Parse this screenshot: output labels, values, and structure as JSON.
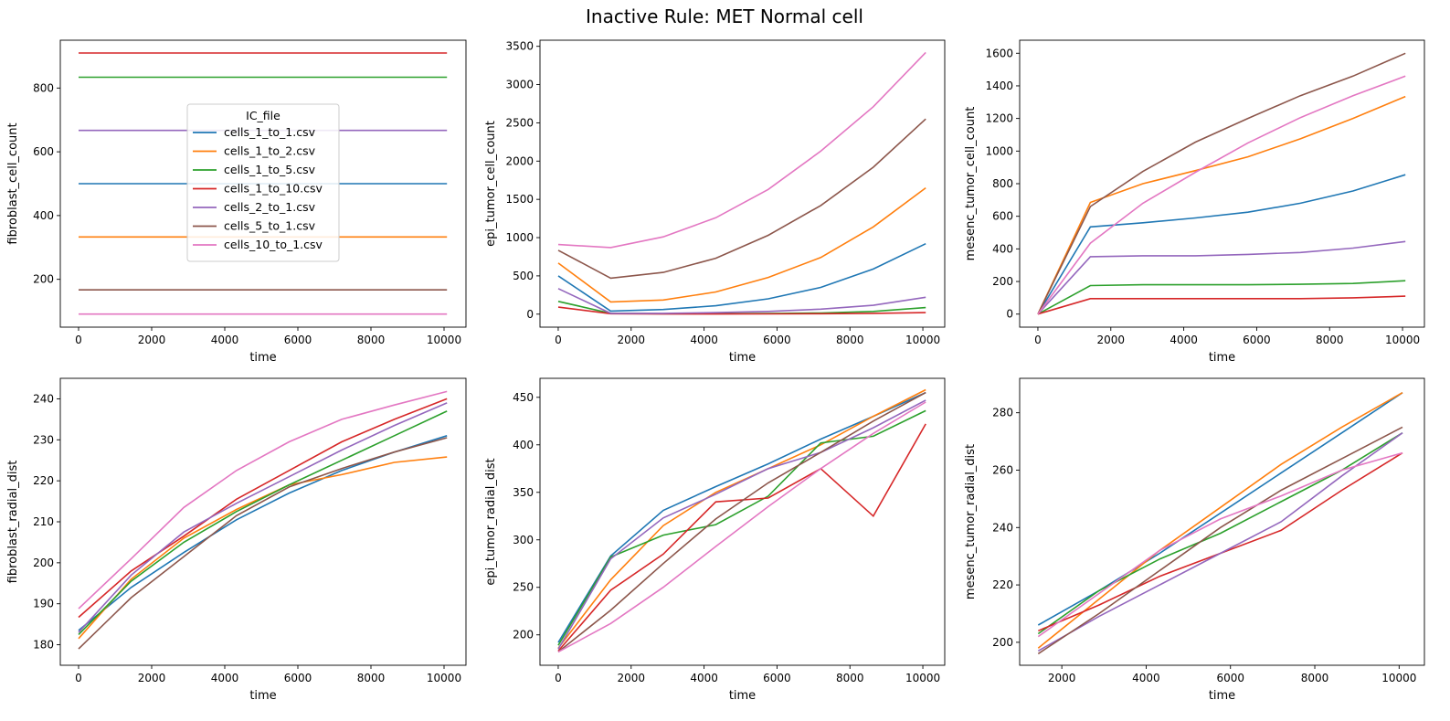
{
  "figure": {
    "title": "Inactive Rule: MET Normal cell"
  },
  "legend": {
    "title": "IC_file",
    "placement": "upper-center of first panel",
    "entries": [
      "cells_1_to_1.csv",
      "cells_1_to_2.csv",
      "cells_1_to_5.csv",
      "cells_1_to_10.csv",
      "cells_2_to_1.csv",
      "cells_5_to_1.csv",
      "cells_10_to_1.csv"
    ]
  },
  "colors": [
    "#1f77b4",
    "#ff7f0e",
    "#2ca02c",
    "#d62728",
    "#9467bd",
    "#8c564b",
    "#e377c2"
  ],
  "chart_data": [
    {
      "type": "line",
      "xlabel": "time",
      "ylabel": "fibroblast_cell_count",
      "xlim": [
        -500,
        10600
      ],
      "ylim": [
        50,
        950
      ],
      "xticks": [
        0,
        2000,
        4000,
        6000,
        8000,
        10000
      ],
      "yticks": [
        200,
        400,
        600,
        800
      ],
      "x": [
        0,
        1440,
        2880,
        4320,
        5760,
        7200,
        8640,
        10080
      ],
      "series": [
        {
          "name": "cells_1_to_1.csv",
          "values": [
            500,
            500,
            500,
            500,
            500,
            500,
            500,
            500
          ]
        },
        {
          "name": "cells_1_to_2.csv",
          "values": [
            333,
            333,
            333,
            333,
            333,
            333,
            333,
            333
          ]
        },
        {
          "name": "cells_1_to_5.csv",
          "values": [
            834,
            834,
            834,
            834,
            834,
            834,
            834,
            834
          ]
        },
        {
          "name": "cells_1_to_10.csv",
          "values": [
            910,
            910,
            910,
            910,
            910,
            910,
            910,
            910
          ]
        },
        {
          "name": "cells_2_to_1.csv",
          "values": [
            667,
            667,
            667,
            667,
            667,
            667,
            667,
            667
          ]
        },
        {
          "name": "cells_5_to_1.csv",
          "values": [
            167,
            167,
            167,
            167,
            167,
            167,
            167,
            167
          ]
        },
        {
          "name": "cells_10_to_1.csv",
          "values": [
            91,
            91,
            91,
            91,
            91,
            91,
            91,
            91
          ]
        }
      ]
    },
    {
      "type": "line",
      "xlabel": "time",
      "ylabel": "epi_tumor_cell_count",
      "xlim": [
        -500,
        10600
      ],
      "ylim": [
        -170,
        3580
      ],
      "xticks": [
        0,
        2000,
        4000,
        6000,
        8000,
        10000
      ],
      "yticks": [
        0,
        500,
        1000,
        1500,
        2000,
        2500,
        3000,
        3500
      ],
      "x": [
        0,
        1440,
        2880,
        4320,
        5760,
        7200,
        8640,
        10080
      ],
      "series": [
        {
          "name": "cells_1_to_1.csv",
          "values": [
            500,
            40,
            60,
            110,
            200,
            350,
            590,
            920
          ]
        },
        {
          "name": "cells_1_to_2.csv",
          "values": [
            667,
            160,
            185,
            290,
            480,
            740,
            1140,
            1650
          ]
        },
        {
          "name": "cells_1_to_5.csv",
          "values": [
            167,
            10,
            5,
            5,
            8,
            15,
            35,
            85
          ]
        },
        {
          "name": "cells_1_to_10.csv",
          "values": [
            91,
            5,
            2,
            2,
            3,
            5,
            10,
            20
          ]
        },
        {
          "name": "cells_2_to_1.csv",
          "values": [
            334,
            10,
            10,
            20,
            35,
            65,
            115,
            220
          ]
        },
        {
          "name": "cells_5_to_1.csv",
          "values": [
            834,
            470,
            545,
            730,
            1030,
            1420,
            1920,
            2550
          ]
        },
        {
          "name": "cells_10_to_1.csv",
          "values": [
            910,
            870,
            1010,
            1260,
            1630,
            2130,
            2710,
            3420
          ]
        }
      ]
    },
    {
      "type": "line",
      "xlabel": "time",
      "ylabel": "mesenc_tumor_cell_count",
      "xlim": [
        -500,
        10600
      ],
      "ylim": [
        -80,
        1680
      ],
      "xticks": [
        0,
        2000,
        4000,
        6000,
        8000,
        10000
      ],
      "yticks": [
        0,
        200,
        400,
        600,
        800,
        1000,
        1200,
        1400,
        1600
      ],
      "x": [
        0,
        1440,
        2880,
        4320,
        5760,
        7200,
        8640,
        10080
      ],
      "series": [
        {
          "name": "cells_1_to_1.csv",
          "values": [
            0,
            535,
            560,
            590,
            625,
            680,
            755,
            855
          ]
        },
        {
          "name": "cells_1_to_2.csv",
          "values": [
            0,
            685,
            800,
            880,
            965,
            1075,
            1200,
            1335
          ]
        },
        {
          "name": "cells_1_to_5.csv",
          "values": [
            0,
            175,
            180,
            180,
            180,
            183,
            188,
            205
          ]
        },
        {
          "name": "cells_1_to_10.csv",
          "values": [
            0,
            95,
            95,
            95,
            95,
            95,
            100,
            110
          ]
        },
        {
          "name": "cells_2_to_1.csv",
          "values": [
            0,
            352,
            358,
            358,
            366,
            378,
            405,
            445
          ]
        },
        {
          "name": "cells_5_to_1.csv",
          "values": [
            0,
            660,
            875,
            1055,
            1200,
            1340,
            1460,
            1600
          ]
        },
        {
          "name": "cells_10_to_1.csv",
          "values": [
            0,
            435,
            680,
            870,
            1050,
            1205,
            1340,
            1460
          ]
        }
      ]
    },
    {
      "type": "line",
      "xlabel": "time",
      "ylabel": "fibroblast_radial_dist",
      "xlim": [
        -500,
        10600
      ],
      "ylim": [
        175,
        245
      ],
      "xticks": [
        0,
        2000,
        4000,
        6000,
        8000,
        10000
      ],
      "yticks": [
        180,
        190,
        200,
        210,
        220,
        230,
        240
      ],
      "x": [
        0,
        1440,
        2880,
        4320,
        5760,
        7200,
        8640,
        10080
      ],
      "series": [
        {
          "name": "cells_1_to_1.csv",
          "values": [
            183.5,
            194,
            202.5,
            210.5,
            217,
            222.5,
            227,
            231
          ]
        },
        {
          "name": "cells_1_to_2.csv",
          "values": [
            181.5,
            196,
            206,
            213,
            219,
            221.5,
            224.5,
            225.8
          ]
        },
        {
          "name": "cells_1_to_5.csv",
          "values": [
            182.5,
            195.5,
            205,
            212.5,
            219,
            225,
            231,
            237
          ]
        },
        {
          "name": "cells_1_to_10.csv",
          "values": [
            186.7,
            198,
            206.5,
            215.5,
            222.5,
            229.5,
            235,
            240
          ]
        },
        {
          "name": "cells_2_to_1.csv",
          "values": [
            183,
            197,
            207.5,
            214.5,
            221,
            227.5,
            233.5,
            239
          ]
        },
        {
          "name": "cells_5_to_1.csv",
          "values": [
            179,
            191.5,
            201.5,
            211.5,
            218.5,
            223,
            227,
            230.5
          ]
        },
        {
          "name": "cells_10_to_1.csv",
          "values": [
            188.8,
            201,
            213.5,
            222.5,
            229.5,
            235,
            238.5,
            241.8
          ]
        }
      ]
    },
    {
      "type": "line",
      "xlabel": "time",
      "ylabel": "epi_tumor_radial_dist",
      "xlim": [
        -500,
        10600
      ],
      "ylim": [
        168,
        470
      ],
      "xticks": [
        0,
        2000,
        4000,
        6000,
        8000,
        10000
      ],
      "yticks": [
        200,
        250,
        300,
        350,
        400,
        450
      ],
      "x": [
        0,
        1440,
        2880,
        4320,
        5760,
        7200,
        8640,
        10080
      ],
      "series": [
        {
          "name": "cells_1_to_1.csv",
          "values": [
            192,
            283,
            331,
            356,
            380,
            406,
            430,
            455
          ]
        },
        {
          "name": "cells_1_to_2.csv",
          "values": [
            186,
            258,
            315,
            350,
            375,
            400,
            430,
            458
          ]
        },
        {
          "name": "cells_1_to_5.csv",
          "values": [
            189,
            282,
            305,
            316,
            346,
            402,
            409,
            436
          ]
        },
        {
          "name": "cells_1_to_10.csv",
          "values": [
            183,
            247,
            285,
            340,
            344,
            375,
            325,
            422
          ]
        },
        {
          "name": "cells_2_to_1.csv",
          "values": [
            185,
            280,
            323,
            348,
            375,
            392,
            418,
            447
          ]
        },
        {
          "name": "cells_5_to_1.csv",
          "values": [
            182,
            226,
            275,
            322,
            360,
            392,
            425,
            455
          ]
        },
        {
          "name": "cells_10_to_1.csv",
          "values": [
            182,
            212,
            250,
            293,
            335,
            375,
            412,
            445
          ]
        }
      ]
    },
    {
      "type": "line",
      "xlabel": "time",
      "ylabel": "mesenc_tumor_radial_dist",
      "xlim": [
        1000,
        10600
      ],
      "ylim": [
        192,
        292
      ],
      "xticks": [
        2000,
        4000,
        6000,
        8000,
        10000
      ],
      "yticks": [
        200,
        220,
        240,
        260,
        280
      ],
      "x": [
        1440,
        2880,
        4320,
        5760,
        7200,
        8640,
        10080
      ],
      "series": [
        {
          "name": "cells_1_to_1.csv",
          "values": [
            206,
            218,
            231,
            245,
            259,
            273,
            287
          ]
        },
        {
          "name": "cells_1_to_2.csv",
          "values": [
            198,
            215,
            232,
            247,
            262,
            275,
            287
          ]
        },
        {
          "name": "cells_1_to_5.csv",
          "values": [
            203,
            218,
            229,
            238,
            249,
            260,
            273
          ]
        },
        {
          "name": "cells_1_to_10.csv",
          "values": [
            204,
            213,
            223,
            231,
            239,
            253,
            266
          ]
        },
        {
          "name": "cells_2_to_1.csv",
          "values": [
            197,
            209,
            220,
            231,
            242,
            258,
            273
          ]
        },
        {
          "name": "cells_5_to_1.csv",
          "values": [
            196,
            210,
            225,
            240,
            253,
            264,
            275
          ]
        },
        {
          "name": "cells_10_to_1.csv",
          "values": [
            202,
            217,
            232,
            243,
            251,
            260,
            266
          ]
        }
      ]
    }
  ]
}
